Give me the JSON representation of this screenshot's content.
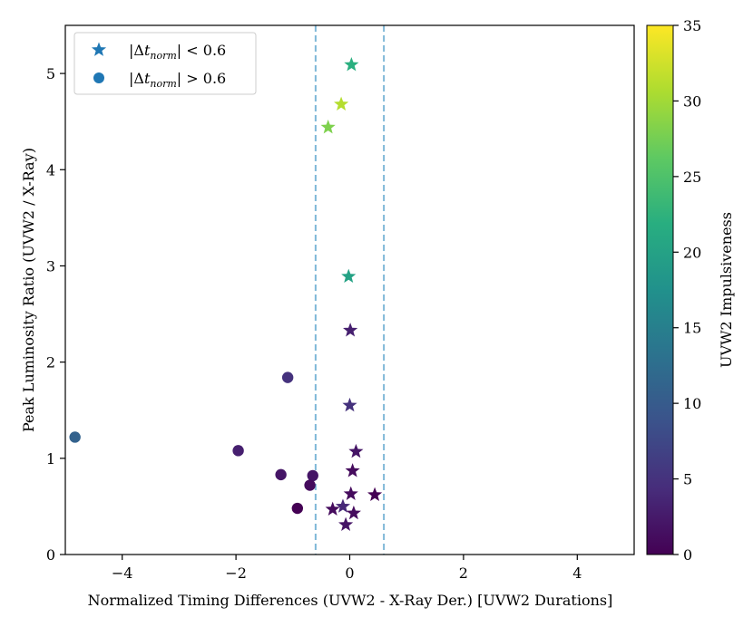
{
  "chart_data": {
    "type": "scatter",
    "title": "",
    "xlabel": "Normalized Timing Differences (UVW2 - X-Ray Der.) [UVW2 Durations]",
    "ylabel": "Peak Luminosity Ratio (UVW2 / X-Ray)",
    "xlim": [
      -5,
      5
    ],
    "ylim": [
      0,
      5.5
    ],
    "xticks": [
      -4,
      -2,
      0,
      2,
      4
    ],
    "xtick_labels": [
      "−4",
      "−2",
      "0",
      "2",
      "4"
    ],
    "yticks": [
      0,
      1,
      2,
      3,
      4,
      5
    ],
    "ytick_labels": [
      "0",
      "1",
      "2",
      "3",
      "4",
      "5"
    ],
    "threshold_lines": [
      -0.6,
      0.6
    ],
    "colorbar": {
      "label": "UVW2 Impulsiveness",
      "min": 0,
      "max": 35,
      "ticks": [
        0,
        5,
        10,
        15,
        20,
        25,
        30,
        35
      ],
      "colormap": "viridis"
    },
    "legend": {
      "location": "upper-left",
      "entries": [
        {
          "marker": "star",
          "label": "|Δt_norm| < 0.6"
        },
        {
          "marker": "circle",
          "label": "|Δt_norm| > 0.6"
        }
      ]
    },
    "series": [
      {
        "name": "|Δt_norm| < 0.6",
        "marker": "star",
        "points": [
          {
            "x": 0.03,
            "y": 5.09,
            "c": 22
          },
          {
            "x": -0.15,
            "y": 4.68,
            "c": 31
          },
          {
            "x": -0.38,
            "y": 4.44,
            "c": 28
          },
          {
            "x": -0.02,
            "y": 2.89,
            "c": 20
          },
          {
            "x": 0.01,
            "y": 2.33,
            "c": 3
          },
          {
            "x": 0.0,
            "y": 1.55,
            "c": 5
          },
          {
            "x": 0.11,
            "y": 1.07,
            "c": 2
          },
          {
            "x": 0.05,
            "y": 0.87,
            "c": 1
          },
          {
            "x": 0.02,
            "y": 0.63,
            "c": 1
          },
          {
            "x": 0.44,
            "y": 0.62,
            "c": 0
          },
          {
            "x": -0.12,
            "y": 0.5,
            "c": 4
          },
          {
            "x": -0.3,
            "y": 0.47,
            "c": 1
          },
          {
            "x": 0.07,
            "y": 0.43,
            "c": 1
          },
          {
            "x": -0.07,
            "y": 0.31,
            "c": 2
          }
        ]
      },
      {
        "name": "|Δt_norm| > 0.6",
        "marker": "circle",
        "points": [
          {
            "x": -4.83,
            "y": 1.22,
            "c": 11
          },
          {
            "x": -1.09,
            "y": 1.84,
            "c": 5
          },
          {
            "x": -1.96,
            "y": 1.08,
            "c": 3
          },
          {
            "x": -1.21,
            "y": 0.83,
            "c": 2
          },
          {
            "x": -0.65,
            "y": 0.82,
            "c": 2
          },
          {
            "x": -0.7,
            "y": 0.72,
            "c": 1
          },
          {
            "x": -0.92,
            "y": 0.48,
            "c": 0
          }
        ]
      }
    ]
  }
}
